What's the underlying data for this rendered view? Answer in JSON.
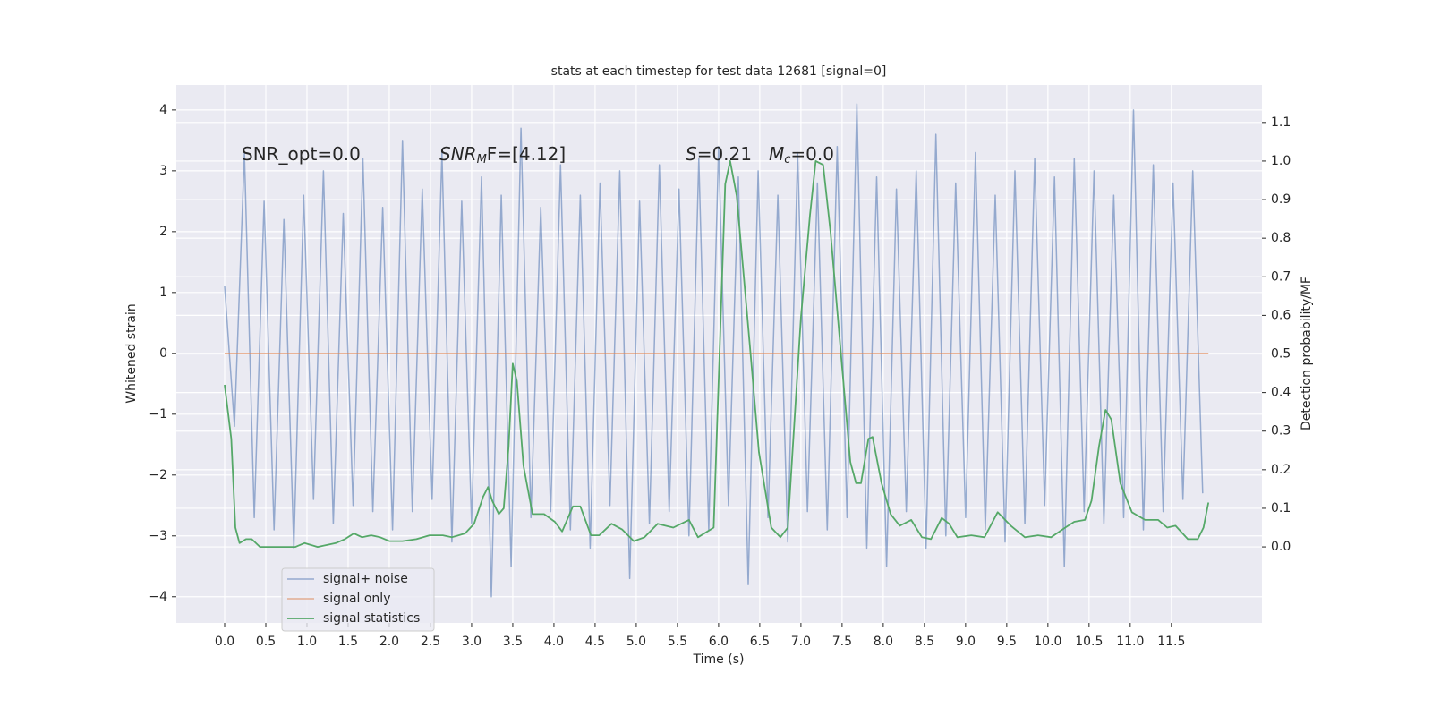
{
  "chart_data": {
    "type": "line",
    "title": "stats at each timestep for test data 12681 [signal=0]",
    "x_label": "Time (s)",
    "y_label": "Whitened strain",
    "y2_label": "Detection probability/MF",
    "annotations": [
      [
        "SNR_opt=0.0"
      ],
      [
        "SNR",
        "M",
        "F=[4.12]"
      ],
      [
        "S",
        "=0.21"
      ],
      [
        "M",
        "c",
        "=0.0"
      ]
    ],
    "xlim": [
      -0.587,
      12.6
    ],
    "ylim": [
      -4.43,
      4.41
    ],
    "y2lim": [
      -0.197,
      1.197
    ],
    "xticks": [
      {
        "value": 0,
        "label": "0.0"
      },
      0.5,
      {
        "value": 1,
        "label": "1.0"
      },
      1.5,
      {
        "value": 2,
        "label": "2.0"
      },
      2.5,
      {
        "value": 3,
        "label": "3.0"
      },
      3.5,
      {
        "value": 4,
        "label": "4.0"
      },
      4.5,
      {
        "value": 5,
        "label": "5.0"
      },
      5.5,
      {
        "value": 6,
        "label": "6.0"
      },
      6.5,
      {
        "value": 7,
        "label": "7.0"
      },
      7.5,
      {
        "value": 8,
        "label": "8.0"
      },
      8.5,
      {
        "value": 9,
        "label": "9.0"
      },
      9.5,
      {
        "value": 10,
        "label": "10.0"
      },
      10.5,
      {
        "value": 11,
        "label": "11.0"
      },
      11.5
    ],
    "yticks": [
      {
        "value": -4,
        "label": "−4"
      },
      {
        "value": -3,
        "label": "−3"
      },
      {
        "value": -2,
        "label": "−2"
      },
      {
        "value": -1,
        "label": "−1"
      },
      0,
      1,
      2,
      3,
      4
    ],
    "y2ticks": [
      {
        "value": 0,
        "label": "0.0"
      },
      0.1,
      0.2,
      0.3,
      0.4,
      0.5,
      0.6,
      0.7,
      0.8,
      0.9,
      {
        "value": 1,
        "label": "1.0"
      },
      1.1
    ],
    "grid": true,
    "legend": "lower left",
    "series": [
      {
        "name": "signal+ noise",
        "color": "#4c72b0",
        "x": [
          0,
          0.12,
          0.24,
          0.36,
          0.48,
          0.6,
          0.72,
          0.84,
          0.96,
          1.08,
          1.2,
          1.32,
          1.44,
          1.56,
          1.68,
          1.8,
          1.92,
          2.04,
          2.16,
          2.28,
          2.4,
          2.52,
          2.64,
          2.76,
          2.88,
          3.0,
          3.12,
          3.24,
          3.36,
          3.48,
          3.6,
          3.72,
          3.84,
          3.96,
          4.08,
          4.2,
          4.32,
          4.44,
          4.56,
          4.68,
          4.8,
          4.92,
          5.04,
          5.16,
          5.28,
          5.4,
          5.52,
          5.64,
          5.76,
          5.88,
          6.0,
          6.12,
          6.24,
          6.36,
          6.48,
          6.6,
          6.72,
          6.84,
          6.96,
          7.08,
          7.2,
          7.32,
          7.44,
          7.56,
          7.68,
          7.8,
          7.92,
          8.04,
          8.16,
          8.28,
          8.4,
          8.52,
          8.64,
          8.76,
          8.88,
          9.0,
          9.12,
          9.24,
          9.36,
          9.48,
          9.6,
          9.72,
          9.84,
          9.96,
          10.08,
          10.2,
          10.32,
          10.44,
          10.56,
          10.68,
          10.8,
          10.92,
          11.04,
          11.16,
          11.28,
          11.4,
          11.52,
          11.64,
          11.76,
          11.88
        ],
        "values": [
          1.1,
          -1.2,
          3.3,
          -2.7,
          2.5,
          -2.9,
          2.2,
          -3.2,
          2.6,
          -2.4,
          3.0,
          -2.8,
          2.3,
          -2.5,
          3.2,
          -2.6,
          2.4,
          -2.9,
          3.5,
          -2.6,
          2.7,
          -2.4,
          3.3,
          -3.1,
          2.5,
          -2.8,
          2.9,
          -4.0,
          2.6,
          -3.5,
          3.7,
          -2.7,
          2.4,
          -2.6,
          3.1,
          -2.9,
          2.6,
          -3.2,
          2.8,
          -2.5,
          3.0,
          -3.7,
          2.5,
          -2.8,
          3.1,
          -2.6,
          2.7,
          -3.0,
          3.2,
          -2.9,
          3.4,
          -2.5,
          2.9,
          -3.8,
          3.0,
          -2.7,
          2.6,
          -3.1,
          3.3,
          -2.6,
          2.8,
          -2.9,
          3.4,
          -2.7,
          4.1,
          -3.2,
          2.9,
          -3.5,
          2.7,
          -2.6,
          3.0,
          -3.2,
          3.6,
          -3.0,
          2.8,
          -2.7,
          3.3,
          -2.9,
          2.6,
          -3.1,
          3.0,
          -2.8,
          3.2,
          -2.5,
          2.9,
          -3.5,
          3.2,
          -2.6,
          3.0,
          -2.8,
          2.6,
          -2.7,
          4.0,
          -2.9,
          3.1,
          -2.6,
          2.8,
          -2.4,
          3.0,
          -2.3
        ]
      },
      {
        "name": "signal only",
        "color": "#dd8452",
        "x": [
          0,
          11.95
        ],
        "values": [
          0,
          0
        ]
      },
      {
        "name": "signal statistics",
        "color": "#55a868",
        "axis": "y2",
        "x": [
          0,
          0.08,
          0.13,
          0.18,
          0.26,
          0.33,
          0.43,
          0.64,
          0.86,
          0.97,
          1.13,
          1.35,
          1.46,
          1.57,
          1.67,
          1.78,
          1.89,
          2.0,
          2.16,
          2.33,
          2.49,
          2.65,
          2.76,
          2.92,
          3.03,
          3.14,
          3.2,
          3.25,
          3.33,
          3.39,
          3.45,
          3.5,
          3.55,
          3.63,
          3.74,
          3.88,
          4.01,
          4.1,
          4.23,
          4.32,
          4.45,
          4.55,
          4.7,
          4.83,
          4.97,
          5.1,
          5.26,
          5.45,
          5.64,
          5.75,
          5.94,
          6.01,
          6.08,
          6.14,
          6.22,
          6.38,
          6.49,
          6.64,
          6.75,
          6.84,
          7.0,
          7.11,
          7.18,
          7.27,
          7.36,
          7.49,
          7.6,
          7.67,
          7.73,
          7.82,
          7.87,
          7.98,
          8.09,
          8.2,
          8.34,
          8.47,
          8.58,
          8.71,
          8.8,
          8.9,
          9.07,
          9.23,
          9.39,
          9.55,
          9.72,
          9.88,
          10.04,
          10.21,
          10.32,
          10.45,
          10.53,
          10.62,
          10.7,
          10.77,
          10.88,
          11.02,
          11.18,
          11.34,
          11.45,
          11.55,
          11.7,
          11.82,
          11.89,
          11.95
        ],
        "values": [
          0.42,
          0.28,
          0.05,
          0.01,
          0.02,
          0.02,
          0.0,
          0.0,
          0.0,
          0.01,
          0.0,
          0.01,
          0.02,
          0.035,
          0.025,
          0.03,
          0.025,
          0.015,
          0.015,
          0.02,
          0.03,
          0.03,
          0.025,
          0.035,
          0.06,
          0.13,
          0.155,
          0.12,
          0.085,
          0.1,
          0.26,
          0.475,
          0.43,
          0.21,
          0.085,
          0.085,
          0.065,
          0.04,
          0.105,
          0.105,
          0.03,
          0.03,
          0.06,
          0.045,
          0.015,
          0.025,
          0.06,
          0.05,
          0.07,
          0.025,
          0.05,
          0.49,
          0.94,
          1.0,
          0.91,
          0.52,
          0.245,
          0.05,
          0.025,
          0.05,
          0.595,
          0.86,
          1.0,
          0.99,
          0.815,
          0.49,
          0.22,
          0.165,
          0.165,
          0.28,
          0.285,
          0.165,
          0.085,
          0.055,
          0.07,
          0.025,
          0.02,
          0.075,
          0.06,
          0.025,
          0.03,
          0.025,
          0.09,
          0.055,
          0.025,
          0.03,
          0.025,
          0.05,
          0.065,
          0.07,
          0.12,
          0.26,
          0.355,
          0.33,
          0.165,
          0.09,
          0.07,
          0.07,
          0.05,
          0.055,
          0.02,
          0.02,
          0.05,
          0.115
        ]
      }
    ]
  }
}
